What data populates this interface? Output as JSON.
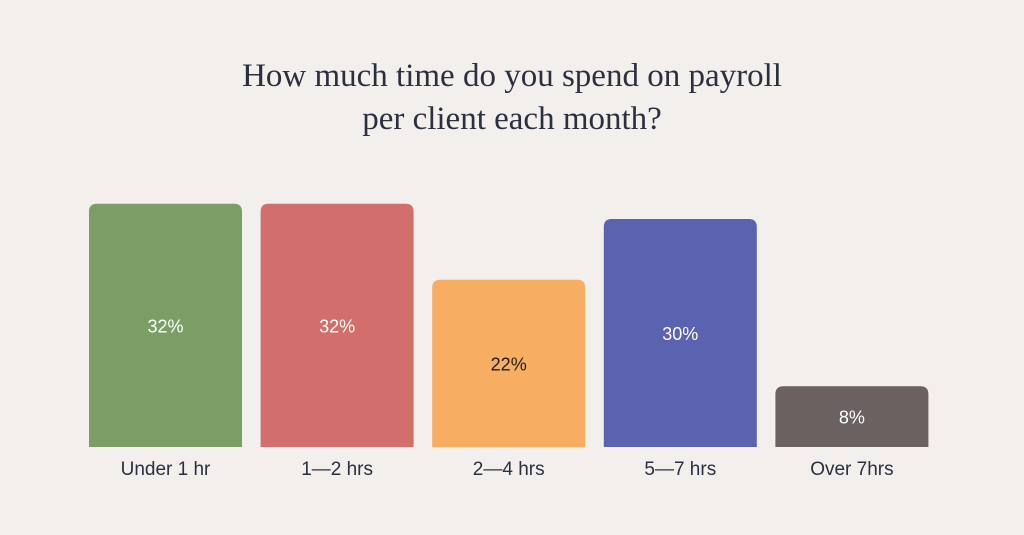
{
  "chart_data": {
    "type": "bar",
    "title": [
      "How much time do you spend on payroll",
      "per client each month?"
    ],
    "categories": [
      "Under 1 hr",
      "1—2 hrs",
      "2—4 hrs",
      "5—7 hrs",
      "Over 7hrs"
    ],
    "values": [
      32,
      32,
      22,
      30,
      8
    ],
    "value_labels": [
      "32%",
      "32%",
      "22%",
      "30%",
      "8%"
    ],
    "colors": [
      "#7a9e64",
      "#d26f6c",
      "#f8ae62",
      "#5b62b0",
      "#6a6160"
    ]
  }
}
